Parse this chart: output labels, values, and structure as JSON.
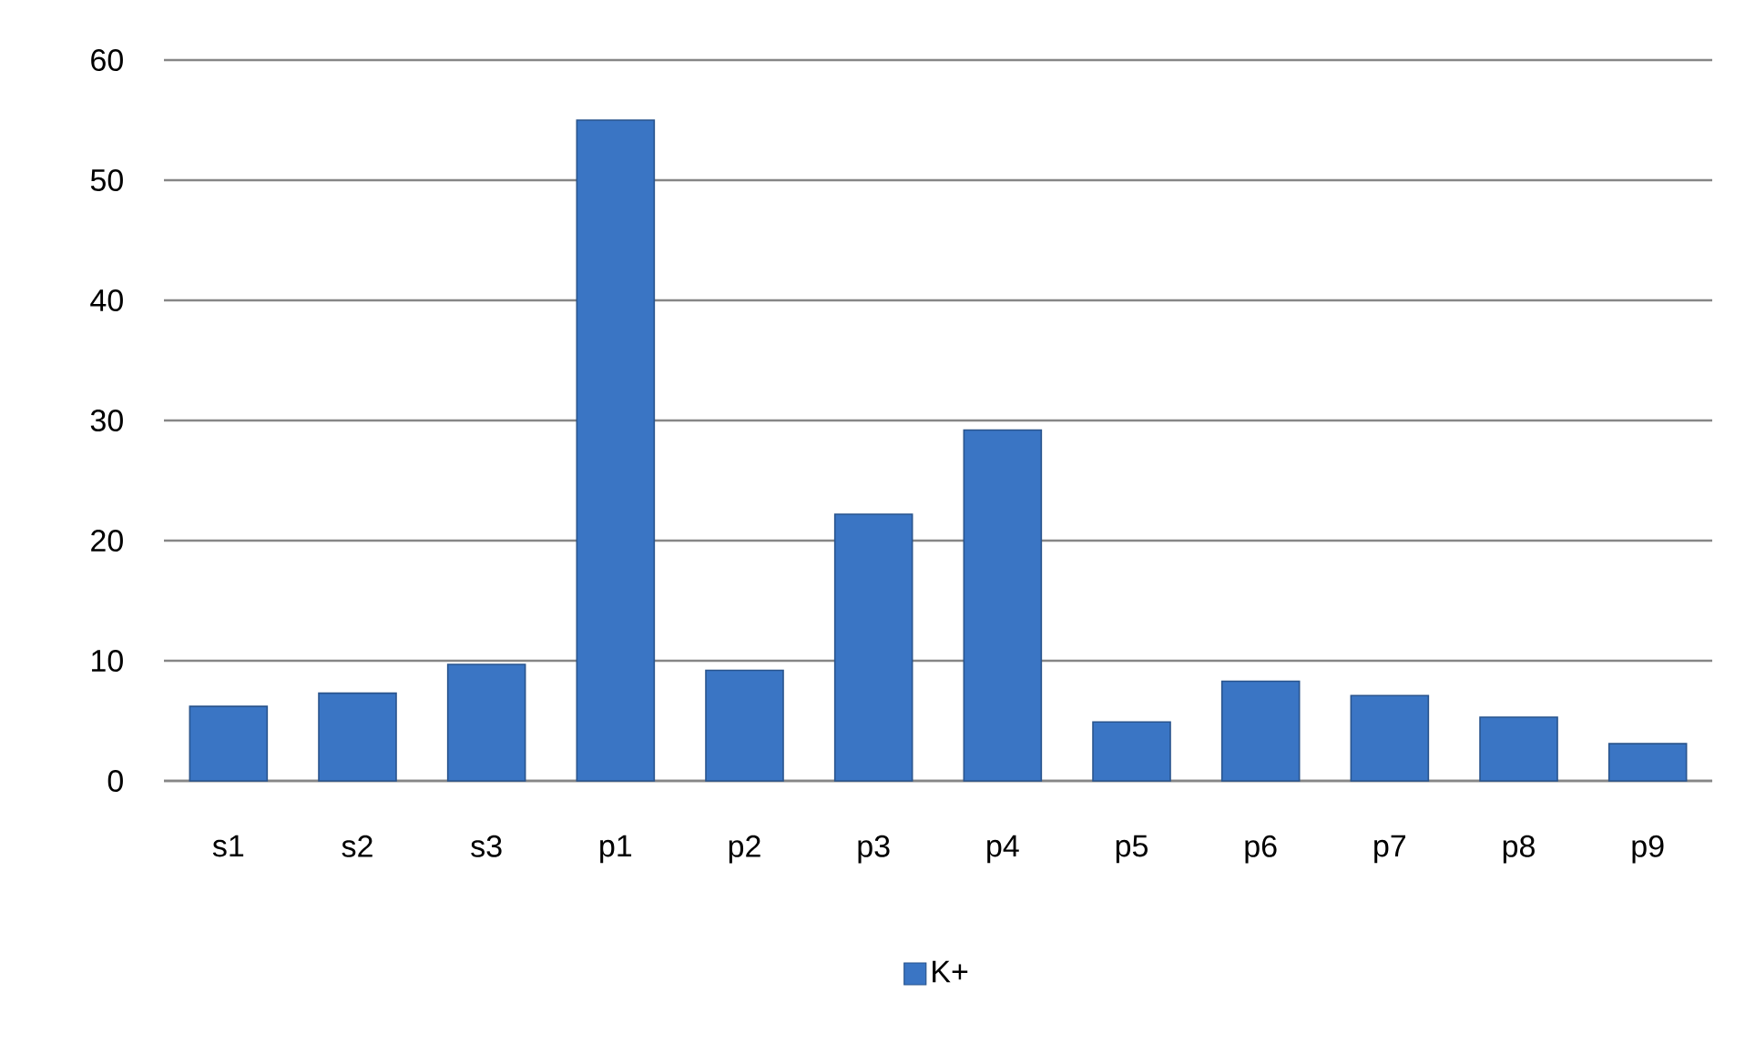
{
  "chart_data": {
    "type": "bar",
    "categories": [
      "s1",
      "s2",
      "s3",
      "p1",
      "p2",
      "p3",
      "p4",
      "p5",
      "p6",
      "p7",
      "p8",
      "p9"
    ],
    "series": [
      {
        "name": "K+",
        "color": "#3a75c4",
        "values": [
          6.2,
          7.3,
          9.7,
          55,
          9.2,
          22.2,
          29.2,
          4.9,
          8.3,
          7.1,
          5.3,
          3.1
        ]
      }
    ],
    "ylim": [
      0,
      60
    ],
    "yticks": [
      0,
      10,
      20,
      30,
      40,
      50,
      60
    ],
    "grid": "y",
    "legend": "bottom"
  }
}
